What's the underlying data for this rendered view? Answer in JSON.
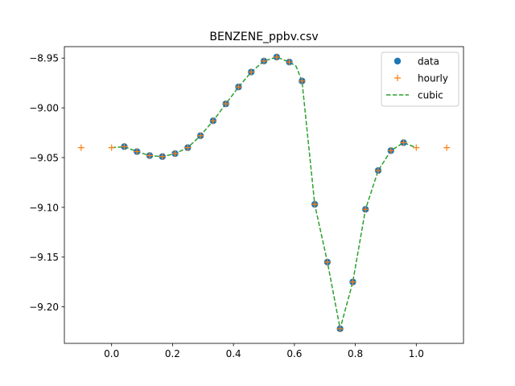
{
  "chart_data": {
    "type": "line",
    "title": "BENZENE_ppbv.csv",
    "xlabel": "",
    "ylabel": "",
    "xlim": [
      -0.155,
      1.155
    ],
    "ylim": [
      -9.2367,
      -8.9385
    ],
    "x_ticks": [
      0.0,
      0.2,
      0.4,
      0.6,
      0.8,
      1.0
    ],
    "x_tick_labels": [
      "0.0",
      "0.2",
      "0.4",
      "0.6",
      "0.8",
      "1.0"
    ],
    "y_ticks": [
      -8.95,
      -9.0,
      -9.05,
      -9.1,
      -9.15,
      -9.2
    ],
    "y_tick_labels": [
      "−8.95",
      "−9.00",
      "−9.05",
      "−9.10",
      "−9.15",
      "−9.20"
    ],
    "grid": false,
    "legend_position": "top-right",
    "series": [
      {
        "name": "data",
        "style": "markers",
        "marker": "circle",
        "color": "#1f77b4",
        "x": [
          0.0417,
          0.0833,
          0.125,
          0.1667,
          0.2083,
          0.25,
          0.2917,
          0.3333,
          0.375,
          0.4167,
          0.4583,
          0.5,
          0.5417,
          0.5833,
          0.625,
          0.6667,
          0.7083,
          0.75,
          0.7917,
          0.8333,
          0.875,
          0.9167,
          0.9583
        ],
        "y": [
          -9.039,
          -9.044,
          -9.048,
          -9.049,
          -9.046,
          -9.04,
          -9.028,
          -9.013,
          -8.996,
          -8.979,
          -8.964,
          -8.953,
          -8.949,
          -8.954,
          -8.973,
          -9.097,
          -9.155,
          -9.222,
          -9.175,
          -9.102,
          -9.063,
          -9.043,
          -9.035
        ]
      },
      {
        "name": "hourly",
        "style": "markers",
        "marker": "plus",
        "color": "#ff7f0e",
        "x": [
          -0.1,
          0.0,
          0.0417,
          0.0833,
          0.125,
          0.1667,
          0.2083,
          0.25,
          0.2917,
          0.3333,
          0.375,
          0.4167,
          0.4583,
          0.5,
          0.5417,
          0.5833,
          0.625,
          0.6667,
          0.7083,
          0.75,
          0.7917,
          0.8333,
          0.875,
          0.9167,
          0.9583,
          1.0,
          1.1
        ],
        "y": [
          -9.04,
          -9.04,
          -9.039,
          -9.044,
          -9.048,
          -9.049,
          -9.046,
          -9.04,
          -9.028,
          -9.013,
          -8.996,
          -8.979,
          -8.964,
          -8.953,
          -8.949,
          -8.954,
          -8.973,
          -9.097,
          -9.155,
          -9.222,
          -9.175,
          -9.102,
          -9.063,
          -9.043,
          -9.035,
          -9.04,
          -9.04
        ]
      },
      {
        "name": "cubic",
        "style": "dashed-line",
        "color": "#2ca02c",
        "x": [
          0.0,
          0.0417,
          0.0833,
          0.125,
          0.1667,
          0.2083,
          0.25,
          0.2917,
          0.3333,
          0.375,
          0.4167,
          0.4583,
          0.5,
          0.5417,
          0.5833,
          0.605,
          0.625,
          0.6667,
          0.7083,
          0.75,
          0.7917,
          0.8333,
          0.875,
          0.9167,
          0.9583,
          1.0
        ],
        "y": [
          -9.04,
          -9.039,
          -9.044,
          -9.048,
          -9.049,
          -9.046,
          -9.04,
          -9.028,
          -9.013,
          -8.996,
          -8.979,
          -8.964,
          -8.953,
          -8.949,
          -8.954,
          -8.958,
          -8.973,
          -9.097,
          -9.155,
          -9.222,
          -9.175,
          -9.102,
          -9.063,
          -9.043,
          -9.035,
          -9.04
        ]
      }
    ]
  }
}
